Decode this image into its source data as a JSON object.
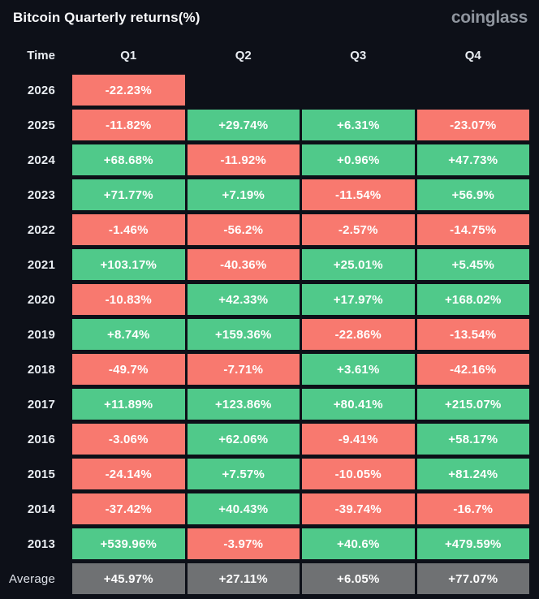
{
  "header": {
    "title": "Bitcoin Quarterly returns(%)",
    "logo": "coinglass"
  },
  "colors": {
    "background": "#0d1018",
    "positive": "#50c98a",
    "negative": "#f8796f",
    "average_cell": "#6f7173",
    "logo": "#8f959e"
  },
  "chart_data": {
    "type": "table",
    "title": "Bitcoin Quarterly returns(%)",
    "columns": [
      "Time",
      "Q1",
      "Q2",
      "Q3",
      "Q4"
    ],
    "legend": {
      "positive": "green cell",
      "negative": "red cell",
      "average": "gray cell"
    },
    "rows": [
      {
        "time": "2026",
        "values": [
          "-22.23%",
          null,
          null,
          null
        ]
      },
      {
        "time": "2025",
        "values": [
          "-11.82%",
          "+29.74%",
          "+6.31%",
          "-23.07%"
        ]
      },
      {
        "time": "2024",
        "values": [
          "+68.68%",
          "-11.92%",
          "+0.96%",
          "+47.73%"
        ]
      },
      {
        "time": "2023",
        "values": [
          "+71.77%",
          "+7.19%",
          "-11.54%",
          "+56.9%"
        ]
      },
      {
        "time": "2022",
        "values": [
          "-1.46%",
          "-56.2%",
          "-2.57%",
          "-14.75%"
        ]
      },
      {
        "time": "2021",
        "values": [
          "+103.17%",
          "-40.36%",
          "+25.01%",
          "+5.45%"
        ]
      },
      {
        "time": "2020",
        "values": [
          "-10.83%",
          "+42.33%",
          "+17.97%",
          "+168.02%"
        ]
      },
      {
        "time": "2019",
        "values": [
          "+8.74%",
          "+159.36%",
          "-22.86%",
          "-13.54%"
        ]
      },
      {
        "time": "2018",
        "values": [
          "-49.7%",
          "-7.71%",
          "+3.61%",
          "-42.16%"
        ]
      },
      {
        "time": "2017",
        "values": [
          "+11.89%",
          "+123.86%",
          "+80.41%",
          "+215.07%"
        ]
      },
      {
        "time": "2016",
        "values": [
          "-3.06%",
          "+62.06%",
          "-9.41%",
          "+58.17%"
        ]
      },
      {
        "time": "2015",
        "values": [
          "-24.14%",
          "+7.57%",
          "-10.05%",
          "+81.24%"
        ]
      },
      {
        "time": "2014",
        "values": [
          "-37.42%",
          "+40.43%",
          "-39.74%",
          "-16.7%"
        ]
      },
      {
        "time": "2013",
        "values": [
          "+539.96%",
          "-3.97%",
          "+40.6%",
          "+479.59%"
        ]
      },
      {
        "time": "Average",
        "values": [
          "+45.97%",
          "+27.11%",
          "+6.05%",
          "+77.07%"
        ],
        "is_average": true
      }
    ]
  }
}
